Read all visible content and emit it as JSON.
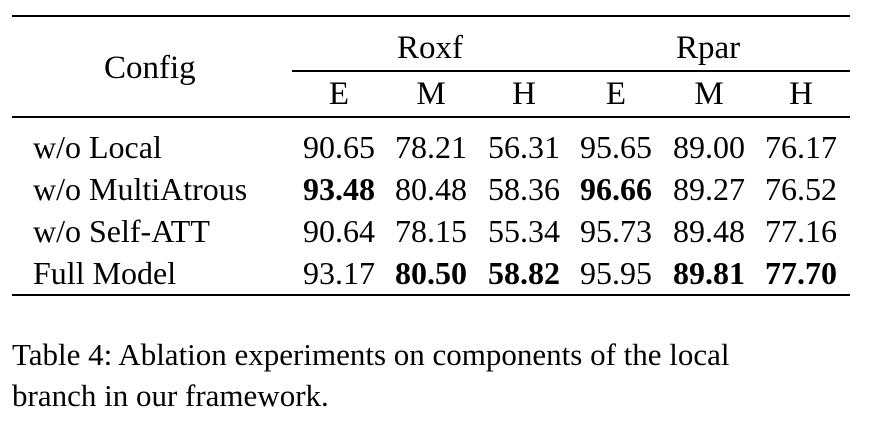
{
  "table": {
    "config_header": "Config",
    "groups": [
      "Roxf",
      "Rpar"
    ],
    "subheaders": [
      "E",
      "M",
      "H",
      "E",
      "M",
      "H"
    ],
    "rows": [
      {
        "label": "w/o Local",
        "values": [
          "90.65",
          "78.21",
          "56.31",
          "95.65",
          "89.00",
          "76.17"
        ],
        "bold": [
          false,
          false,
          false,
          false,
          false,
          false
        ]
      },
      {
        "label": "w/o MultiAtrous",
        "values": [
          "93.48",
          "80.48",
          "58.36",
          "96.66",
          "89.27",
          "76.52"
        ],
        "bold": [
          true,
          false,
          false,
          true,
          false,
          false
        ]
      },
      {
        "label": "w/o Self-ATT",
        "values": [
          "90.64",
          "78.15",
          "55.34",
          "95.73",
          "89.48",
          "77.16"
        ],
        "bold": [
          false,
          false,
          false,
          false,
          false,
          false
        ]
      },
      {
        "label": "Full Model",
        "values": [
          "93.17",
          "80.50",
          "58.82",
          "95.95",
          "89.81",
          "77.70"
        ],
        "bold": [
          false,
          true,
          true,
          false,
          true,
          true
        ]
      }
    ]
  },
  "caption": {
    "line1": "Table 4:  Ablation experiments on components of the local",
    "line2": "branch in our framework."
  }
}
